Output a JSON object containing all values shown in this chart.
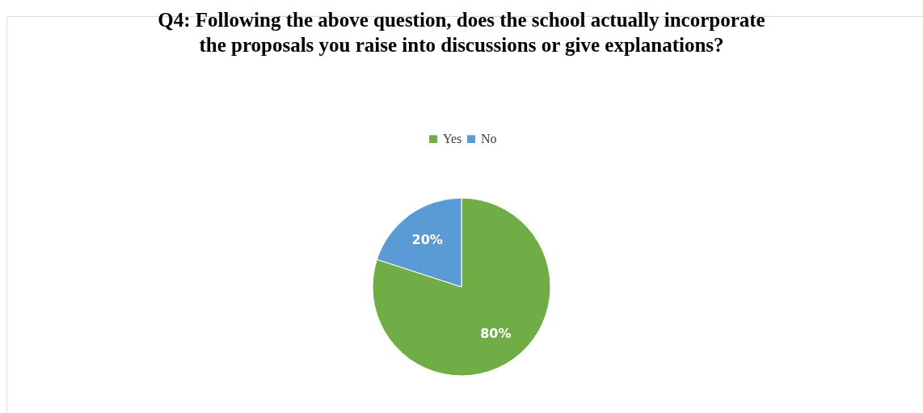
{
  "chart_data": {
    "type": "pie",
    "title": "Q4: Following the above question, does the school actually incorporate the proposals you raise into discussions or give explanations?",
    "categories": [
      "Yes",
      "No"
    ],
    "values": [
      80,
      20
    ],
    "colors": [
      "#70ad47",
      "#5b9bd5"
    ],
    "value_labels": [
      "80%",
      "20%"
    ],
    "legend": "top"
  }
}
